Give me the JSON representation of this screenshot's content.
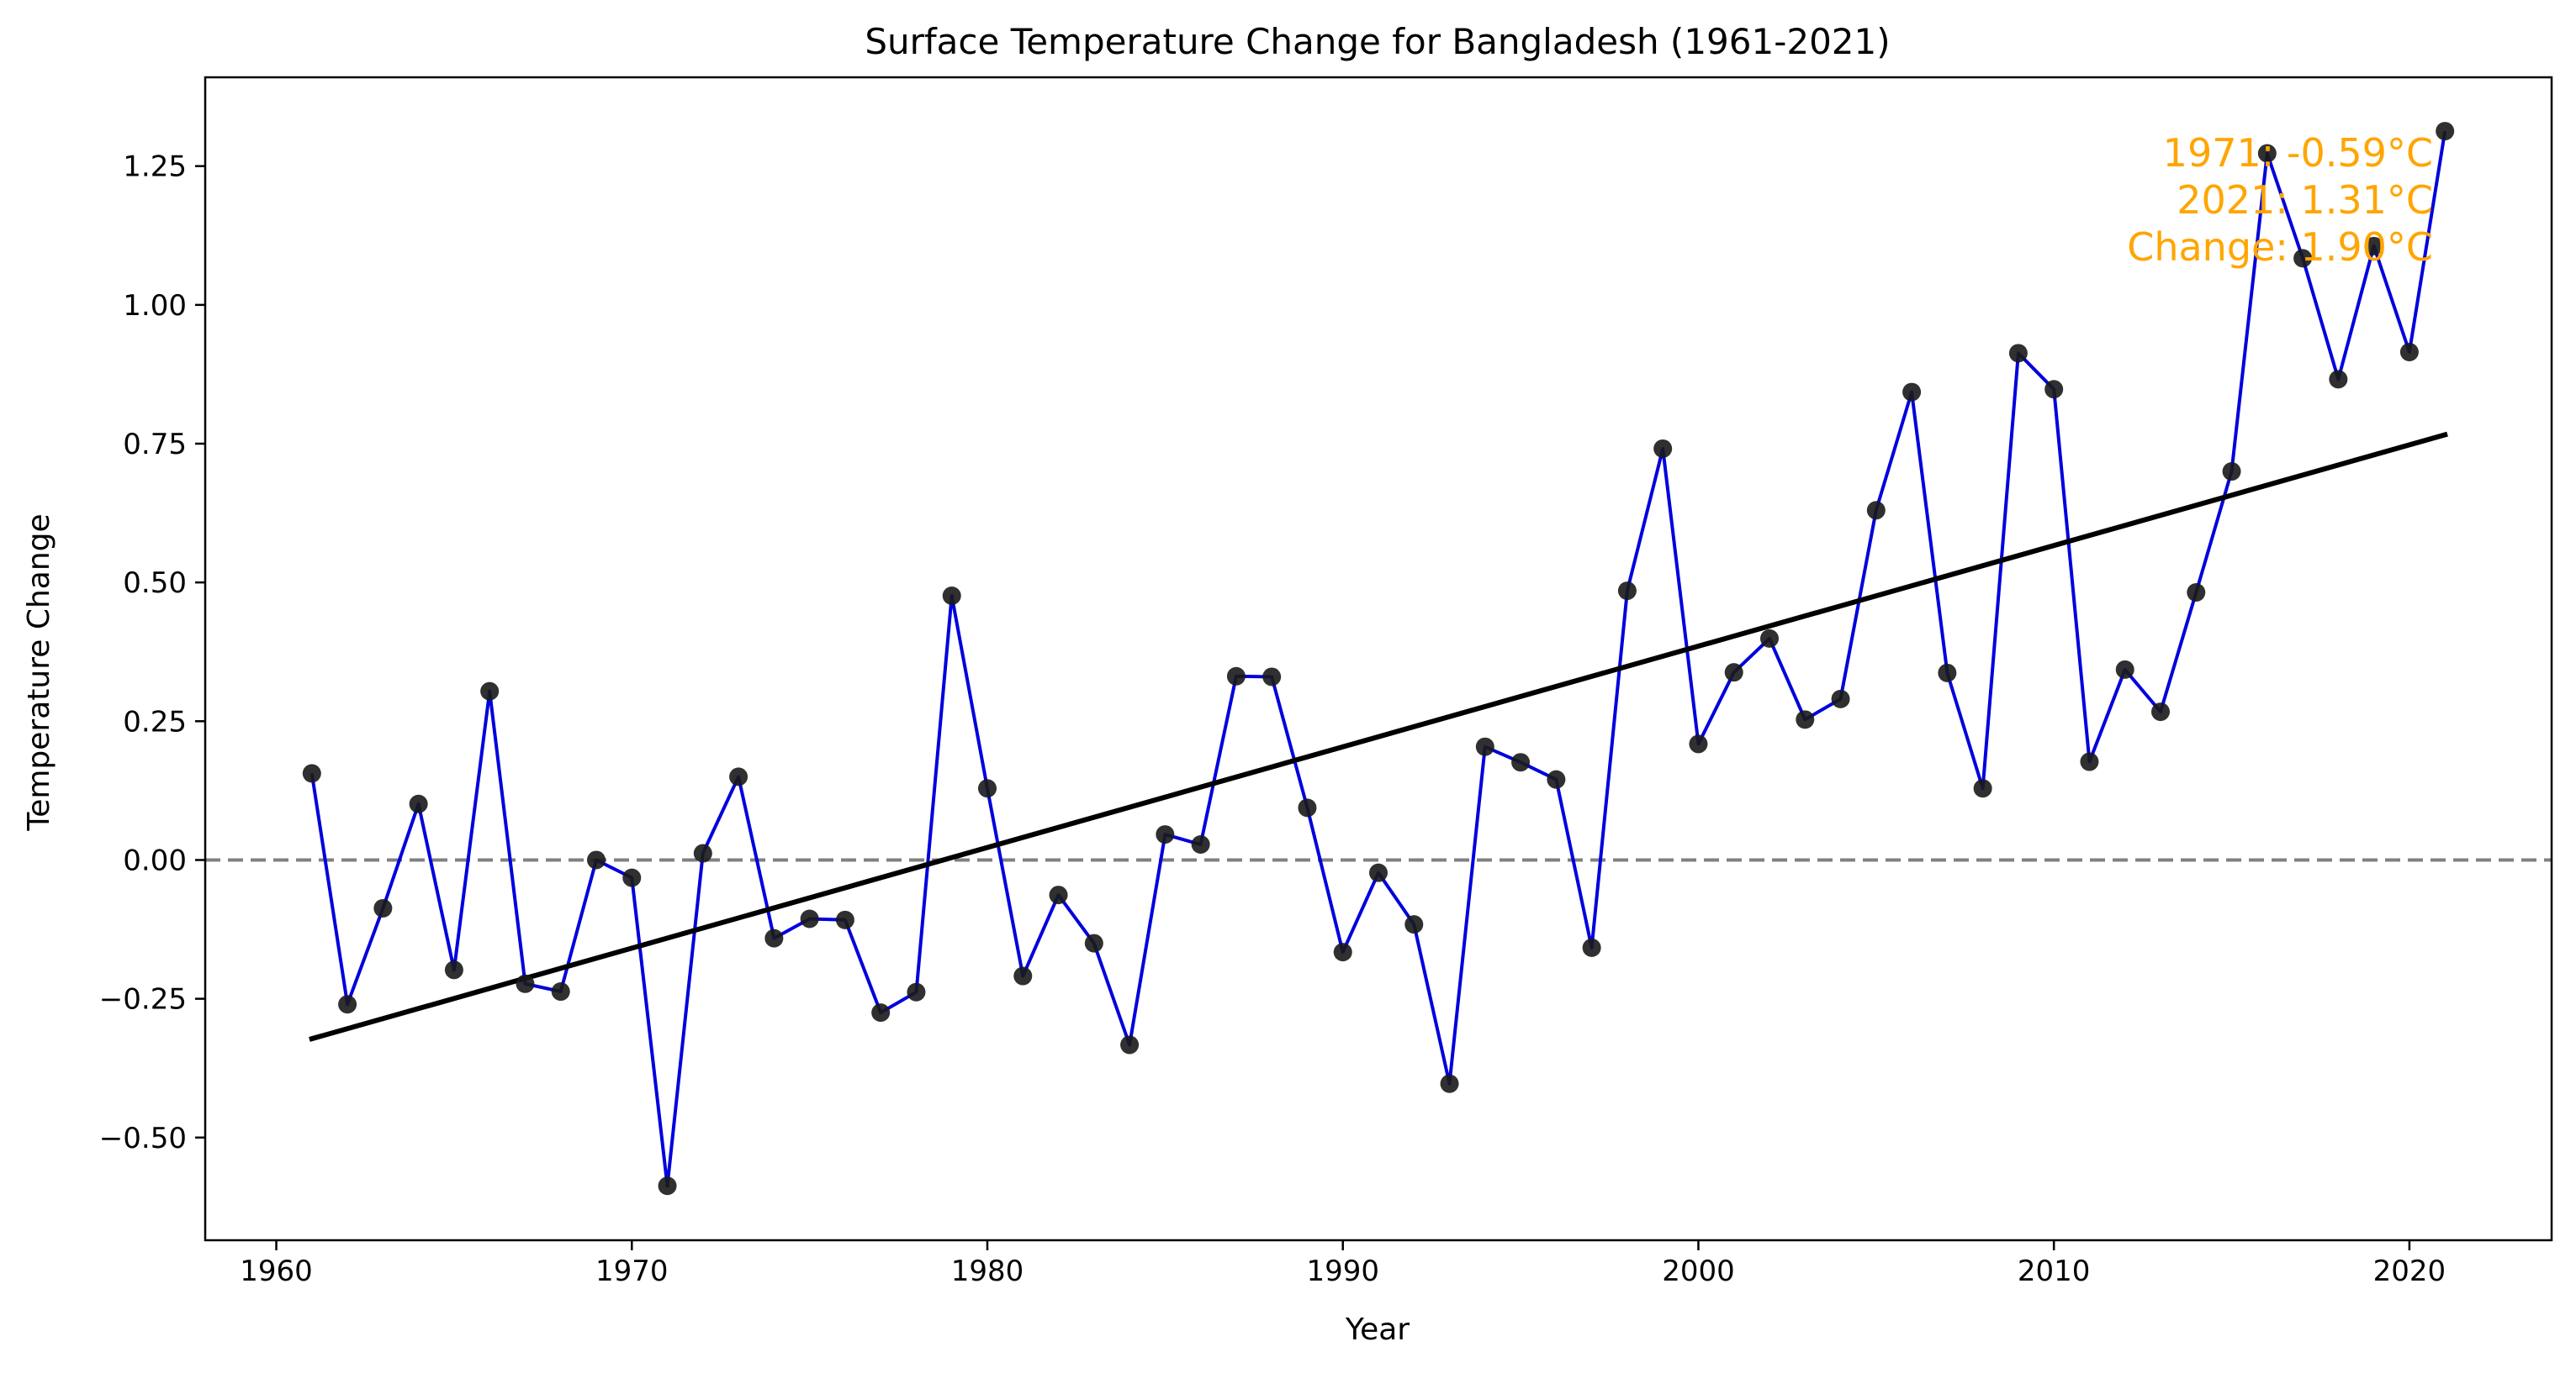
{
  "chart_data": {
    "type": "line",
    "title": "Surface Temperature Change for Bangladesh (1961-2021)",
    "xlabel": "Year",
    "ylabel": "Temperature Change",
    "xlim": [
      1958.0,
      2024.0
    ],
    "ylim": [
      -0.685,
      1.41
    ],
    "x_ticks": [
      1960,
      1970,
      1980,
      1990,
      2000,
      2010,
      2020
    ],
    "y_ticks": [
      -0.5,
      -0.25,
      0.0,
      0.25,
      0.5,
      0.75,
      1.0,
      1.25
    ],
    "y_tick_labels": [
      "−0.50",
      "−0.25",
      "0.00",
      "0.25",
      "0.50",
      "0.75",
      "1.00",
      "1.25"
    ],
    "grid": false,
    "series": [
      {
        "line_color": "#0000dd",
        "marker_color": "#1a1a1a",
        "x": [
          1961,
          1962,
          1963,
          1964,
          1965,
          1966,
          1967,
          1968,
          1969,
          1970,
          1971,
          1972,
          1973,
          1974,
          1975,
          1976,
          1977,
          1978,
          1979,
          1980,
          1981,
          1982,
          1983,
          1984,
          1985,
          1986,
          1987,
          1988,
          1989,
          1990,
          1991,
          1992,
          1993,
          1994,
          1995,
          1996,
          1997,
          1998,
          1999,
          2000,
          2001,
          2002,
          2003,
          2004,
          2005,
          2006,
          2007,
          2008,
          2009,
          2010,
          2011,
          2012,
          2013,
          2014,
          2015,
          2016,
          2017,
          2018,
          2019,
          2020,
          2021
        ],
        "values": [
          0.156,
          -0.26,
          -0.087,
          0.101,
          -0.198,
          0.304,
          -0.223,
          -0.237,
          0.0,
          -0.032,
          -0.587,
          0.012,
          0.15,
          -0.141,
          -0.106,
          -0.108,
          -0.275,
          -0.238,
          0.476,
          0.129,
          -0.209,
          -0.063,
          -0.15,
          -0.333,
          0.046,
          0.028,
          0.331,
          0.33,
          0.094,
          -0.166,
          -0.023,
          -0.116,
          -0.403,
          0.204,
          0.176,
          0.145,
          -0.158,
          0.485,
          0.741,
          0.209,
          0.338,
          0.399,
          0.253,
          0.29,
          0.63,
          0.843,
          0.337,
          0.129,
          0.913,
          0.848,
          0.177,
          0.343,
          0.267,
          0.482,
          0.7,
          1.273,
          1.084,
          0.866,
          1.106,
          0.915,
          1.313
        ]
      }
    ],
    "trend_line": {
      "color": "#000000",
      "x": [
        1961,
        2021
      ],
      "y": [
        -0.322,
        0.766
      ]
    },
    "reference_line": {
      "y": 0.0,
      "style": "dashed",
      "color": "#808080"
    },
    "annotation": {
      "color": "#ffa500",
      "lines": [
        "1971: -0.59°C",
        "2021: 1.31°C",
        "Change: 1.90°C"
      ]
    }
  }
}
